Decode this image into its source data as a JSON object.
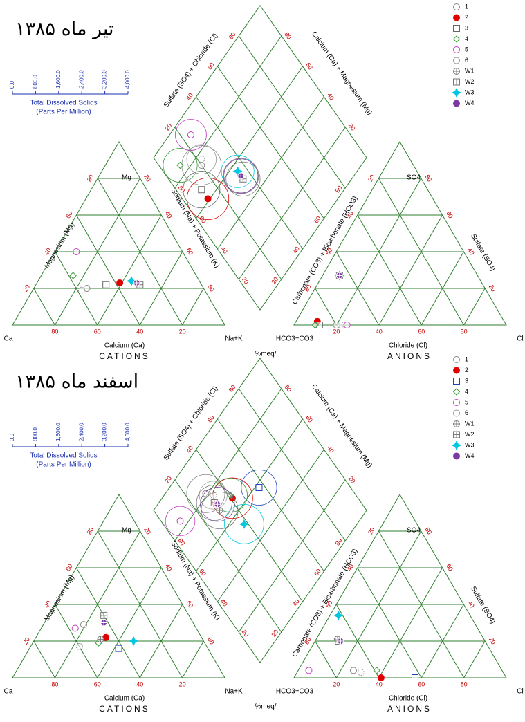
{
  "chart_data": [
    {
      "type": "piper",
      "title": "تیر ماه ۱۳۸۵",
      "tds_title": "Total Dissolved Solids",
      "tds_subtitle": "(Parts Per Million)",
      "tds_ticks": [
        {
          "value": 0,
          "label": "0.0"
        },
        {
          "value": 800,
          "label": "800.0"
        },
        {
          "value": 1600,
          "label": "1,600.0"
        },
        {
          "value": 2400,
          "label": "2,400.0"
        },
        {
          "value": 3200,
          "label": "3,200.0"
        },
        {
          "value": 4000,
          "label": "4,000.0"
        }
      ],
      "ticks": [
        20,
        40,
        60,
        80
      ],
      "labels": {
        "mg": "Mg",
        "ca": "Ca",
        "nak": "Na+K",
        "so4": "SO4",
        "hco3": "HCO3+CO3",
        "cl": "Cl",
        "calcium": "Calcium (Ca)",
        "magnesium": "Magnesium (Mg)",
        "sodium": "Sodium (Na) + Potassium (K)",
        "chloride": "Chloride (Cl)",
        "sulfate": "Sulfate (SO4)",
        "carbonate": "Carbonate (CO3) + Bicarbonate (HCO3)",
        "sulfate_chloride": "Sulfate (SO4) + Chloride (Cl)",
        "calcium_magnesium": "Calcium (Ca) + Magnesium (Mg)",
        "cations": "CATIONS",
        "anions": "ANIONS",
        "units": "%meq/l"
      },
      "series": [
        {
          "name": "1",
          "color": "#888888",
          "marker": "circle",
          "ca": 55,
          "mg": 20,
          "cl": 20,
          "so4": 0,
          "tds": 1600
        },
        {
          "name": "2",
          "color": "#e00000",
          "marker": "circle-filled",
          "ca": 38,
          "mg": 23,
          "cl": 10,
          "so4": 2,
          "tds": 1800
        },
        {
          "name": "3",
          "color": "#666666",
          "marker": "square",
          "ca": 45,
          "mg": 22,
          "cl": 12,
          "so4": 0,
          "tds": 1400
        },
        {
          "name": "4",
          "color": "#3a9a3a",
          "marker": "diamond",
          "ca": 58,
          "mg": 27,
          "cl": 10,
          "so4": 0,
          "tds": 1200
        },
        {
          "name": "5",
          "color": "#c040c0",
          "marker": "circle",
          "ca": 50,
          "mg": 40,
          "cl": 25,
          "so4": 0,
          "tds": 1000
        },
        {
          "name": "6",
          "color": "#999999",
          "marker": "circle-dashed",
          "ca": 58,
          "mg": 19,
          "cl": 22,
          "so4": 0,
          "tds": 900
        },
        {
          "name": "W1",
          "color": "#777777",
          "marker": "circle-plus",
          "ca": 30,
          "mg": 23,
          "cl": 8,
          "so4": 27,
          "tds": 1300
        },
        {
          "name": "W2",
          "color": "#777777",
          "marker": "square-plus",
          "ca": 29,
          "mg": 22,
          "cl": 8,
          "so4": 27,
          "tds": 1200
        },
        {
          "name": "W3",
          "color": "#00c8e0",
          "marker": "star",
          "ca": 32,
          "mg": 24,
          "cl": 8,
          "so4": 27,
          "tds": 1100
        },
        {
          "name": "W4",
          "color": "#7a3aa0",
          "marker": "circle-plus-filled",
          "ca": 30,
          "mg": 23,
          "cl": 8,
          "so4": 27,
          "tds": 1200
        }
      ]
    },
    {
      "type": "piper",
      "title": "اسفند ماه ۱۳۸۵",
      "tds_title": "Total Dissolved Solids",
      "tds_subtitle": "(Parts Per Million)",
      "tds_ticks": [
        {
          "value": 0,
          "label": "0.0"
        },
        {
          "value": 800,
          "label": "800.0"
        },
        {
          "value": 1600,
          "label": "1,600.0"
        },
        {
          "value": 2400,
          "label": "2,400.0"
        },
        {
          "value": 3200,
          "label": "3,200.0"
        },
        {
          "value": 4000,
          "label": "4,000.0"
        }
      ],
      "ticks": [
        20,
        40,
        60,
        80
      ],
      "labels": {
        "mg": "Mg",
        "ca": "Ca",
        "nak": "Na+K",
        "so4": "SO4",
        "hco3": "HCO3+CO3",
        "cl": "Cl",
        "calcium": "Calcium (Ca)",
        "magnesium": "Magnesium (Mg)",
        "sodium": "Sodium (Na) + Potassium (K)",
        "chloride": "Chloride (Cl)",
        "sulfate": "Sulfate (SO4)",
        "carbonate": "Carbonate (CO3) + Bicarbonate (HCO3)",
        "sulfate_chloride": "Sulfate (SO4) + Chloride (Cl)",
        "calcium_magnesium": "Calcium (Ca) + Magnesium (Mg)",
        "cations": "CATIONS",
        "anions": "ANIONS",
        "units": "%meq/l"
      },
      "series": [
        {
          "name": "1",
          "color": "#888888",
          "marker": "circle",
          "ca": 52,
          "mg": 29,
          "cl": 26,
          "so4": 4,
          "tds": 1500
        },
        {
          "name": "2",
          "color": "#e00000",
          "marker": "circle-filled",
          "ca": 45,
          "mg": 22,
          "cl": 41,
          "so4": 0,
          "tds": 1700
        },
        {
          "name": "3",
          "color": "#2040c0",
          "marker": "square",
          "ca": 42,
          "mg": 16,
          "cl": 57,
          "so4": 0,
          "tds": 1300
        },
        {
          "name": "4",
          "color": "#3a9a3a",
          "marker": "diamond",
          "ca": 50,
          "mg": 19,
          "cl": 37,
          "so4": 4,
          "tds": 1200
        },
        {
          "name": "5",
          "color": "#c040c0",
          "marker": "circle",
          "ca": 57,
          "mg": 27,
          "cl": 5,
          "so4": 4,
          "tds": 900
        },
        {
          "name": "6",
          "color": "#999999",
          "marker": "circle-dashed",
          "ca": 60,
          "mg": 17,
          "cl": 30,
          "so4": 3,
          "tds": 800
        },
        {
          "name": "W1",
          "color": "#777777",
          "marker": "circle-plus",
          "ca": 48,
          "mg": 21,
          "cl": 10,
          "so4": 21,
          "tds": 1400
        },
        {
          "name": "W2",
          "color": "#777777",
          "marker": "square-plus",
          "ca": 40,
          "mg": 34,
          "cl": 11,
          "so4": 20,
          "tds": 1300
        },
        {
          "name": "W3",
          "color": "#00c8e0",
          "marker": "star",
          "ca": 33,
          "mg": 20,
          "cl": 4,
          "so4": 34,
          "tds": 1600
        },
        {
          "name": "W4",
          "color": "#7a3aa0",
          "marker": "circle-plus-filled",
          "ca": 42,
          "mg": 30,
          "cl": 12,
          "so4": 20,
          "tds": 1200
        }
      ]
    }
  ]
}
